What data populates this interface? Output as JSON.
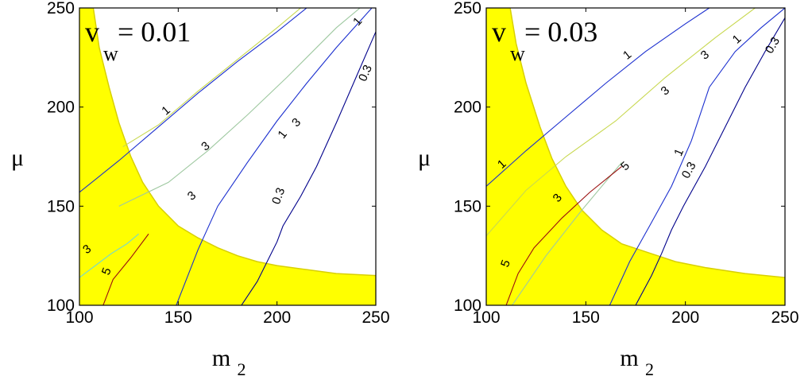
{
  "chart_data": [
    {
      "type": "contour",
      "title_main": "v",
      "title_sub": "w",
      "title_value": " = 0.01",
      "xlabel_main": "m",
      "xlabel_sub": "2",
      "ylabel": "μ",
      "xlim": [
        100,
        250
      ],
      "ylim": [
        100,
        250
      ],
      "xticks": [
        "100",
        "150",
        "200",
        "250"
      ],
      "yticks": [
        "100",
        "150",
        "200",
        "250"
      ],
      "shaded_color": "#ffff00",
      "shaded_boundary": [
        [
          100,
          250
        ],
        [
          107,
          250
        ],
        [
          110,
          230
        ],
        [
          115,
          210
        ],
        [
          120,
          192
        ],
        [
          126,
          175
        ],
        [
          132,
          162
        ],
        [
          140,
          150
        ],
        [
          150,
          140
        ],
        [
          160,
          134
        ],
        [
          170,
          129
        ],
        [
          180,
          125
        ],
        [
          190,
          122
        ],
        [
          200,
          120
        ],
        [
          215,
          118
        ],
        [
          230,
          116
        ],
        [
          250,
          115
        ]
      ],
      "contours": [
        {
          "level": "1",
          "color": "#1b2fcf",
          "points": [
            [
              100,
              157
            ],
            [
              120,
              173
            ],
            [
              140,
              190
            ],
            [
              160,
              207
            ],
            [
              180,
              223
            ],
            [
              200,
              238
            ],
            [
              215,
              250
            ]
          ],
          "labels": [
            {
              "text": "1",
              "x": 144,
              "y": 198
            }
          ]
        },
        {
          "level": "3",
          "color": "#c8d850",
          "points": [
            [
              122,
              180
            ],
            [
              140,
              191
            ],
            [
              160,
              208
            ],
            [
              180,
              224
            ],
            [
              200,
              240
            ],
            [
              212,
              250
            ]
          ],
          "labels": [
            {
              "text": "3",
              "x": 164,
              "y": 180
            }
          ]
        },
        {
          "level": "3",
          "color": "#9ec8a0",
          "points": [
            [
              120,
              150
            ],
            [
              145,
              162
            ],
            [
              165,
              178
            ],
            [
              185,
              196
            ],
            [
              205,
              215
            ],
            [
              230,
              240
            ],
            [
              242,
              250
            ]
          ],
          "labels": [
            {
              "text": "3",
              "x": 157,
              "y": 155
            },
            {
              "text": "3",
              "x": 210,
              "y": 192
            }
          ]
        },
        {
          "level": "1",
          "color": "#1b2fcf",
          "points": [
            [
              149,
              100
            ],
            [
              160,
              128
            ],
            [
              170,
              150
            ],
            [
              185,
              172
            ],
            [
              200,
              193
            ],
            [
              215,
              212
            ],
            [
              230,
              230
            ],
            [
              248,
              250
            ]
          ],
          "labels": [
            {
              "text": "1",
              "x": 203,
              "y": 186
            },
            {
              "text": "1",
              "x": 241,
              "y": 243
            }
          ]
        },
        {
          "level": "0.3",
          "color": "#00008b",
          "points": [
            [
              182,
              100
            ],
            [
              190,
              112
            ],
            [
              196,
              124
            ],
            [
              200,
              132
            ],
            [
              203,
              140
            ],
            [
              212,
              155
            ],
            [
              220,
              170
            ],
            [
              230,
              192
            ],
            [
              240,
              215
            ],
            [
              250,
              238
            ]
          ],
          "labels": [
            {
              "text": "0.3",
              "x": 201,
              "y": 155
            },
            {
              "text": "0.3",
              "x": 245,
              "y": 217
            }
          ]
        },
        {
          "level": "3",
          "color": "#6fd6d6",
          "points": [
            [
              100,
              114
            ],
            [
              108,
              120
            ],
            [
              116,
              126
            ],
            [
              124,
              131
            ],
            [
              130,
              136
            ]
          ],
          "labels": [
            {
              "text": "3",
              "x": 104,
              "y": 128
            }
          ]
        },
        {
          "level": "5",
          "color": "#9b1010",
          "points": [
            [
              112,
              100
            ],
            [
              117,
              113
            ],
            [
              126,
              124
            ],
            [
              135,
              136
            ]
          ],
          "labels": [
            {
              "text": "5",
              "x": 114,
              "y": 117
            }
          ]
        }
      ]
    },
    {
      "type": "contour",
      "title_main": "v",
      "title_sub": "w",
      "title_value": " = 0.03",
      "xlabel_main": "m",
      "xlabel_sub": "2",
      "ylabel": "μ",
      "xlim": [
        100,
        250
      ],
      "ylim": [
        100,
        250
      ],
      "xticks": [
        "100",
        "150",
        "200",
        "250"
      ],
      "yticks": [
        "100",
        "150",
        "200",
        "250"
      ],
      "shaded_color": "#ffff00",
      "shaded_boundary": [
        [
          100,
          250
        ],
        [
          112,
          250
        ],
        [
          115,
          232
        ],
        [
          120,
          212
        ],
        [
          127,
          190
        ],
        [
          133,
          174
        ],
        [
          140,
          160
        ],
        [
          148,
          148
        ],
        [
          158,
          138
        ],
        [
          168,
          131
        ],
        [
          180,
          127
        ],
        [
          195,
          122
        ],
        [
          210,
          119
        ],
        [
          230,
          116
        ],
        [
          250,
          114
        ]
      ],
      "contours": [
        {
          "level": "1",
          "color": "#1b2fcf",
          "points": [
            [
              100,
              160
            ],
            [
              120,
              178
            ],
            [
              140,
              195
            ],
            [
              160,
              212
            ],
            [
              180,
              228
            ],
            [
              200,
              242
            ],
            [
              212,
              250
            ]
          ],
          "labels": [
            {
              "text": "1",
              "x": 108,
              "y": 171
            },
            {
              "text": "1",
              "x": 171,
              "y": 226
            }
          ]
        },
        {
          "level": "3",
          "color": "#c8d850",
          "points": [
            [
              100,
              135
            ],
            [
              120,
              158
            ],
            [
              140,
              175
            ],
            [
              165,
              193
            ],
            [
              190,
              215
            ],
            [
              215,
              235
            ],
            [
              235,
              250
            ]
          ],
          "labels": [
            {
              "text": "3",
              "x": 190,
              "y": 208
            },
            {
              "text": "3",
              "x": 210,
              "y": 226
            }
          ]
        },
        {
          "level": "3",
          "color": "#9ec8a0",
          "points": [
            [
              113,
              100
            ],
            [
              130,
              125
            ],
            [
              148,
              148
            ],
            [
              168,
              172
            ]
          ],
          "labels": [
            {
              "text": "3",
              "x": 136,
              "y": 154
            }
          ]
        },
        {
          "level": "1",
          "color": "#1b2fcf",
          "points": [
            [
              162,
              100
            ],
            [
              172,
              122
            ],
            [
              182,
              140
            ],
            [
              193,
              160
            ],
            [
              203,
              183
            ],
            [
              212,
              210
            ],
            [
              225,
              228
            ],
            [
              238,
              240
            ],
            [
              250,
              250
            ]
          ],
          "labels": [
            {
              "text": "1",
              "x": 197,
              "y": 177
            },
            {
              "text": "1",
              "x": 226,
              "y": 234
            }
          ]
        },
        {
          "level": "0.3",
          "color": "#00008b",
          "points": [
            [
              175,
              100
            ],
            [
              183,
              115
            ],
            [
              188,
              126
            ],
            [
              193,
              138
            ],
            [
              199,
              150
            ],
            [
              210,
              170
            ],
            [
              220,
              190
            ],
            [
              230,
              210
            ],
            [
              240,
              228
            ],
            [
              250,
              245
            ]
          ],
          "labels": [
            {
              "text": "0.3",
              "x": 202,
              "y": 168
            },
            {
              "text": "0.3",
              "x": 244,
              "y": 231
            }
          ]
        },
        {
          "level": "5",
          "color": "#9b1010",
          "points": [
            [
              110,
              100
            ],
            [
              116,
              116
            ],
            [
              124,
              129
            ],
            [
              138,
              144
            ],
            [
              152,
              157
            ],
            [
              168,
              170
            ]
          ],
          "labels": [
            {
              "text": "5",
              "x": 110,
              "y": 121
            },
            {
              "text": "5",
              "x": 170,
              "y": 170
            }
          ]
        }
      ]
    }
  ]
}
